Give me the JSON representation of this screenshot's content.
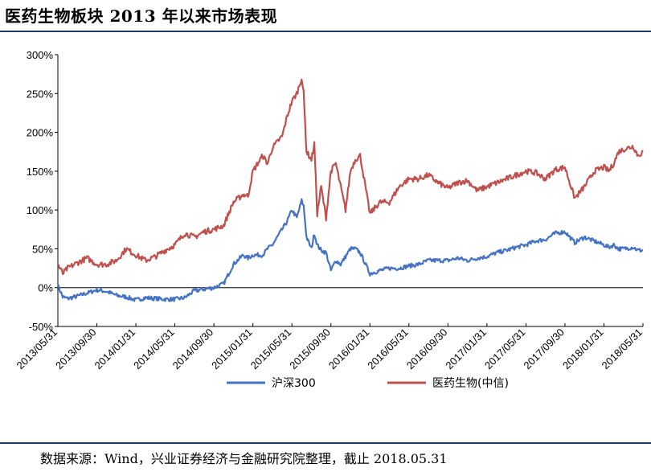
{
  "title": "医药生物板块 2013 年以来市场表现",
  "source": "数据来源：Wind，兴业证券经济与金融研究院整理，截止 2018.05.31",
  "chart_data": {
    "type": "line",
    "title": "医药生物板块 2013 年以来市场表现",
    "xlabel": "",
    "ylabel": "",
    "ylim": [
      -50,
      300
    ],
    "yticks": [
      -50,
      0,
      50,
      100,
      150,
      200,
      250,
      300
    ],
    "ytick_labels": [
      "-50%",
      "0%",
      "50%",
      "100%",
      "150%",
      "200%",
      "250%",
      "300%"
    ],
    "x_tick_labels": [
      "2013/05/31",
      "2013/09/30",
      "2014/01/31",
      "2014/05/31",
      "2014/09/30",
      "2015/01/31",
      "2015/05/31",
      "2015/09/30",
      "2016/01/31",
      "2016/05/31",
      "2016/09/30",
      "2017/01/31",
      "2017/05/31",
      "2017/09/30",
      "2018/01/31",
      "2018/05/31"
    ],
    "x_unit": "months since 2013/05/31",
    "xlim": [
      0,
      60
    ],
    "grid": false,
    "legend_position": "bottom-center",
    "series": [
      {
        "name": "沪深300",
        "color": "#4472c4",
        "x": [
          0,
          0.5,
          1,
          2,
          3,
          4,
          5,
          6,
          7,
          8,
          9,
          10,
          11,
          12,
          13,
          14,
          15,
          16,
          17,
          18,
          19,
          19.5,
          20,
          21,
          21.5,
          22,
          23,
          23.5,
          24,
          24.5,
          25,
          25.2,
          25.5,
          26,
          26.3,
          26.6,
          27,
          27.5,
          28,
          28.5,
          29,
          29.5,
          30,
          30.5,
          31,
          32,
          33,
          34,
          35,
          36,
          37,
          38,
          39,
          40,
          41,
          42,
          43,
          44,
          45,
          46,
          47,
          48,
          49,
          50,
          51,
          52,
          53,
          54,
          55,
          56,
          56.5,
          57,
          57.5,
          58,
          59,
          59.5,
          60
        ],
        "values": [
          3,
          -12,
          -14,
          -11,
          -7,
          -3,
          -5,
          -10,
          -12,
          -16,
          -13,
          -14,
          -15,
          -15,
          -13,
          -4,
          -2,
          0,
          5,
          30,
          42,
          38,
          42,
          42,
          50,
          55,
          75,
          85,
          100,
          90,
          112,
          105,
          65,
          50,
          70,
          55,
          48,
          45,
          22,
          35,
          30,
          40,
          50,
          50,
          45,
          18,
          22,
          25,
          25,
          28,
          30,
          35,
          35,
          35,
          38,
          35,
          38,
          40,
          45,
          48,
          52,
          55,
          60,
          62,
          70,
          72,
          58,
          65,
          60,
          55,
          52,
          55,
          50,
          50,
          52,
          48,
          48
        ]
      },
      {
        "name": "医药生物(中信)",
        "color": "#c0504d",
        "x": [
          0,
          0.5,
          1,
          2,
          3,
          4,
          5,
          6,
          7,
          8,
          9,
          10,
          11,
          12,
          13,
          14,
          15,
          16,
          17,
          18,
          19,
          19.5,
          20,
          21,
          21.5,
          22,
          23,
          23.5,
          24,
          24.5,
          25,
          25.2,
          25.5,
          26,
          26.3,
          26.6,
          27,
          27.5,
          28,
          28.5,
          29,
          29.5,
          30,
          30.5,
          31,
          32,
          33,
          34,
          35,
          36,
          37,
          38,
          39,
          40,
          41,
          42,
          43,
          44,
          45,
          46,
          47,
          48,
          49,
          50,
          51,
          52,
          53,
          54,
          55,
          56,
          56.5,
          57,
          57.5,
          58,
          59,
          59.5,
          60
        ],
        "values": [
          30,
          18,
          25,
          32,
          38,
          30,
          30,
          35,
          50,
          42,
          35,
          40,
          48,
          55,
          70,
          65,
          72,
          75,
          80,
          110,
          120,
          118,
          150,
          170,
          160,
          180,
          195,
          220,
          240,
          250,
          270,
          250,
          175,
          165,
          185,
          95,
          130,
          90,
          150,
          160,
          130,
          100,
          150,
          165,
          170,
          95,
          110,
          110,
          130,
          140,
          140,
          145,
          135,
          128,
          135,
          138,
          125,
          130,
          135,
          140,
          145,
          150,
          148,
          140,
          152,
          155,
          115,
          130,
          150,
          155,
          150,
          160,
          175,
          178,
          182,
          170,
          175
        ]
      }
    ]
  }
}
